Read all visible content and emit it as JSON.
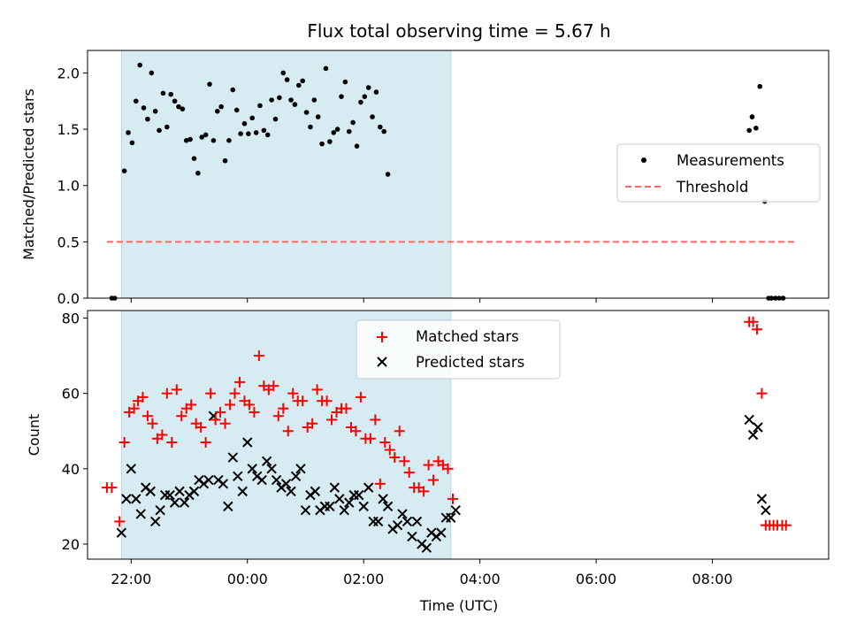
{
  "title": "Flux total observing time = 5.67 h",
  "colors": {
    "shade": "#add8e6",
    "measurement": "#000000",
    "threshold": "#ff6666",
    "matched": "#ff0000",
    "predicted": "#000000"
  },
  "chart_data": [
    {
      "type": "scatter",
      "title": "Flux total observing time = 5.67 h",
      "xlabel": "",
      "ylabel": "Matched/Predicted stars",
      "xlim": [
        "21:15",
        "10:00"
      ],
      "ylim": [
        0,
        2.2
      ],
      "yticks": [
        "0.0",
        "0.5",
        "1.0",
        "1.5",
        "2.0"
      ],
      "shaded_interval": [
        "21:50",
        "03:30"
      ],
      "legend": {
        "placement": "center-right",
        "entries": [
          "Measurements",
          "Threshold"
        ]
      },
      "threshold": {
        "name": "Threshold",
        "y": 0.5,
        "x": [
          "21:35",
          "09:25"
        ]
      },
      "series": [
        {
          "name": "Measurements",
          "marker": "dot",
          "points": [
            [
              "21:40",
              0.0
            ],
            [
              "21:43",
              0.0
            ],
            [
              "21:53",
              1.13
            ],
            [
              "21:57",
              1.47
            ],
            [
              "22:01",
              1.38
            ],
            [
              "22:05",
              1.75
            ],
            [
              "22:09",
              2.07
            ],
            [
              "22:13",
              1.69
            ],
            [
              "22:17",
              1.59
            ],
            [
              "22:21",
              2.0
            ],
            [
              "22:25",
              1.66
            ],
            [
              "22:29",
              1.49
            ],
            [
              "22:33",
              1.82
            ],
            [
              "22:37",
              1.52
            ],
            [
              "22:41",
              1.81
            ],
            [
              "22:45",
              1.75
            ],
            [
              "22:49",
              1.7
            ],
            [
              "22:53",
              1.68
            ],
            [
              "22:57",
              1.4
            ],
            [
              "23:01",
              1.41
            ],
            [
              "23:05",
              1.24
            ],
            [
              "23:09",
              1.11
            ],
            [
              "23:13",
              1.43
            ],
            [
              "23:17",
              1.45
            ],
            [
              "23:21",
              1.9
            ],
            [
              "23:25",
              1.4
            ],
            [
              "23:29",
              1.66
            ],
            [
              "23:33",
              1.7
            ],
            [
              "23:37",
              1.22
            ],
            [
              "23:41",
              1.4
            ],
            [
              "23:45",
              1.85
            ],
            [
              "23:49",
              1.67
            ],
            [
              "23:53",
              1.46
            ],
            [
              "23:57",
              1.55
            ],
            [
              "00:01",
              1.46
            ],
            [
              "00:05",
              1.6
            ],
            [
              "00:09",
              1.47
            ],
            [
              "00:13",
              1.71
            ],
            [
              "00:17",
              1.49
            ],
            [
              "00:21",
              1.45
            ],
            [
              "00:25",
              1.76
            ],
            [
              "00:29",
              1.59
            ],
            [
              "00:33",
              1.78
            ],
            [
              "00:37",
              2.0
            ],
            [
              "00:41",
              1.94
            ],
            [
              "00:45",
              1.76
            ],
            [
              "00:49",
              1.72
            ],
            [
              "00:53",
              1.89
            ],
            [
              "00:57",
              1.93
            ],
            [
              "01:01",
              1.65
            ],
            [
              "01:05",
              1.52
            ],
            [
              "01:09",
              1.76
            ],
            [
              "01:13",
              1.61
            ],
            [
              "01:17",
              1.37
            ],
            [
              "01:21",
              2.04
            ],
            [
              "01:25",
              1.39
            ],
            [
              "01:29",
              1.47
            ],
            [
              "01:33",
              1.5
            ],
            [
              "01:37",
              1.79
            ],
            [
              "01:41",
              1.92
            ],
            [
              "01:45",
              1.48
            ],
            [
              "01:49",
              1.56
            ],
            [
              "01:53",
              1.35
            ],
            [
              "01:57",
              1.74
            ],
            [
              "02:01",
              1.79
            ],
            [
              "02:05",
              1.87
            ],
            [
              "02:09",
              1.61
            ],
            [
              "02:13",
              1.83
            ],
            [
              "02:17",
              1.52
            ],
            [
              "02:21",
              1.48
            ],
            [
              "02:25",
              1.1
            ],
            [
              "08:38",
              1.49
            ],
            [
              "08:41",
              1.61
            ],
            [
              "08:45",
              1.51
            ],
            [
              "08:49",
              1.88
            ],
            [
              "08:54",
              0.86
            ],
            [
              "08:58",
              0.0
            ],
            [
              "09:01",
              0.0
            ],
            [
              "09:05",
              0.0
            ],
            [
              "09:09",
              0.0
            ],
            [
              "09:13",
              0.0
            ]
          ]
        }
      ]
    },
    {
      "type": "scatter",
      "title": "",
      "xlabel": "Time (UTC)",
      "ylabel": "Count",
      "xlim": [
        "21:15",
        "10:00"
      ],
      "ylim": [
        16,
        82
      ],
      "yticks": [
        "20",
        "40",
        "60",
        "80"
      ],
      "xticks": [
        "22:00",
        "00:00",
        "02:00",
        "04:00",
        "06:00",
        "08:00"
      ],
      "shaded_interval": [
        "21:50",
        "03:30"
      ],
      "legend": {
        "placement": "upper-center",
        "entries": [
          "Matched stars",
          "Predicted stars"
        ]
      },
      "series": [
        {
          "name": "Matched stars",
          "marker": "plus",
          "points": [
            [
              "21:35",
              35
            ],
            [
              "21:40",
              35
            ],
            [
              "21:48",
              26
            ],
            [
              "21:53",
              47
            ],
            [
              "21:58",
              55
            ],
            [
              "22:03",
              56
            ],
            [
              "22:07",
              58
            ],
            [
              "22:12",
              59
            ],
            [
              "22:17",
              54
            ],
            [
              "22:22",
              52
            ],
            [
              "22:27",
              48
            ],
            [
              "22:32",
              49
            ],
            [
              "22:37",
              60
            ],
            [
              "22:42",
              47
            ],
            [
              "22:47",
              61
            ],
            [
              "22:52",
              54
            ],
            [
              "22:57",
              56
            ],
            [
              "23:02",
              57
            ],
            [
              "23:07",
              52
            ],
            [
              "23:12",
              51
            ],
            [
              "23:17",
              47
            ],
            [
              "23:22",
              60
            ],
            [
              "23:27",
              53
            ],
            [
              "23:32",
              55
            ],
            [
              "23:37",
              52
            ],
            [
              "23:42",
              57
            ],
            [
              "23:47",
              60
            ],
            [
              "23:52",
              63
            ],
            [
              "23:57",
              58
            ],
            [
              "00:02",
              57
            ],
            [
              "00:07",
              55
            ],
            [
              "00:12",
              70
            ],
            [
              "00:17",
              62
            ],
            [
              "00:22",
              61
            ],
            [
              "00:27",
              62
            ],
            [
              "00:32",
              54
            ],
            [
              "00:37",
              56
            ],
            [
              "00:42",
              50
            ],
            [
              "00:47",
              60
            ],
            [
              "00:52",
              58
            ],
            [
              "00:57",
              58
            ],
            [
              "01:02",
              51
            ],
            [
              "01:07",
              52
            ],
            [
              "01:12",
              61
            ],
            [
              "01:17",
              58
            ],
            [
              "01:22",
              58
            ],
            [
              "01:27",
              53
            ],
            [
              "01:32",
              55
            ],
            [
              "01:37",
              56
            ],
            [
              "01:42",
              56
            ],
            [
              "01:47",
              51
            ],
            [
              "01:52",
              50
            ],
            [
              "01:57",
              59
            ],
            [
              "02:02",
              48
            ],
            [
              "02:07",
              48
            ],
            [
              "02:12",
              53
            ],
            [
              "02:17",
              36
            ],
            [
              "02:22",
              47
            ],
            [
              "02:27",
              45
            ],
            [
              "02:32",
              43
            ],
            [
              "02:37",
              50
            ],
            [
              "02:42",
              42
            ],
            [
              "02:47",
              39
            ],
            [
              "02:52",
              35
            ],
            [
              "02:57",
              35
            ],
            [
              "03:02",
              34
            ],
            [
              "03:07",
              41
            ],
            [
              "03:12",
              37
            ],
            [
              "03:17",
              42
            ],
            [
              "03:22",
              41
            ],
            [
              "03:27",
              40
            ],
            [
              "03:32",
              32
            ],
            [
              "08:38",
              79
            ],
            [
              "08:42",
              79
            ],
            [
              "08:46",
              77
            ],
            [
              "08:51",
              60
            ],
            [
              "08:55",
              25
            ],
            [
              "08:59",
              25
            ],
            [
              "09:03",
              25
            ],
            [
              "09:07",
              25
            ],
            [
              "09:12",
              25
            ],
            [
              "09:16",
              25
            ]
          ]
        },
        {
          "name": "Predicted stars",
          "marker": "x",
          "points": [
            [
              "21:50",
              23
            ],
            [
              "21:55",
              32
            ],
            [
              "22:00",
              40
            ],
            [
              "22:05",
              32
            ],
            [
              "22:10",
              28
            ],
            [
              "22:15",
              35
            ],
            [
              "22:20",
              34
            ],
            [
              "22:25",
              26
            ],
            [
              "22:30",
              29
            ],
            [
              "22:35",
              33
            ],
            [
              "22:40",
              33
            ],
            [
              "22:45",
              31
            ],
            [
              "22:50",
              34
            ],
            [
              "22:55",
              31
            ],
            [
              "23:00",
              33
            ],
            [
              "23:05",
              34
            ],
            [
              "23:10",
              37
            ],
            [
              "23:15",
              36
            ],
            [
              "23:20",
              37
            ],
            [
              "23:25",
              54
            ],
            [
              "23:30",
              37
            ],
            [
              "23:35",
              36
            ],
            [
              "23:40",
              30
            ],
            [
              "23:45",
              43
            ],
            [
              "23:50",
              38
            ],
            [
              "23:55",
              34
            ],
            [
              "00:00",
              47
            ],
            [
              "00:05",
              40
            ],
            [
              "00:10",
              38
            ],
            [
              "00:15",
              37
            ],
            [
              "00:20",
              42
            ],
            [
              "00:25",
              40
            ],
            [
              "00:30",
              37
            ],
            [
              "00:35",
              35
            ],
            [
              "00:40",
              36
            ],
            [
              "00:45",
              34
            ],
            [
              "00:50",
              38
            ],
            [
              "00:55",
              40
            ],
            [
              "01:00",
              29
            ],
            [
              "01:05",
              33
            ],
            [
              "01:10",
              34
            ],
            [
              "01:15",
              29
            ],
            [
              "01:20",
              30
            ],
            [
              "01:25",
              30
            ],
            [
              "01:30",
              35
            ],
            [
              "01:35",
              32
            ],
            [
              "01:40",
              29
            ],
            [
              "01:45",
              31
            ],
            [
              "01:50",
              33
            ],
            [
              "01:55",
              33
            ],
            [
              "02:00",
              30
            ],
            [
              "02:05",
              35
            ],
            [
              "02:10",
              26
            ],
            [
              "02:15",
              26
            ],
            [
              "02:20",
              32
            ],
            [
              "02:25",
              30
            ],
            [
              "02:30",
              24
            ],
            [
              "02:35",
              25
            ],
            [
              "02:40",
              28
            ],
            [
              "02:45",
              26
            ],
            [
              "02:50",
              22
            ],
            [
              "02:55",
              26
            ],
            [
              "03:00",
              20
            ],
            [
              "03:05",
              19
            ],
            [
              "03:10",
              23
            ],
            [
              "03:15",
              22
            ],
            [
              "03:20",
              23
            ],
            [
              "03:25",
              27
            ],
            [
              "03:30",
              27
            ],
            [
              "03:35",
              29
            ],
            [
              "08:38",
              53
            ],
            [
              "08:42",
              49
            ],
            [
              "08:47",
              51
            ],
            [
              "08:51",
              32
            ],
            [
              "08:55",
              29
            ]
          ]
        }
      ]
    }
  ]
}
